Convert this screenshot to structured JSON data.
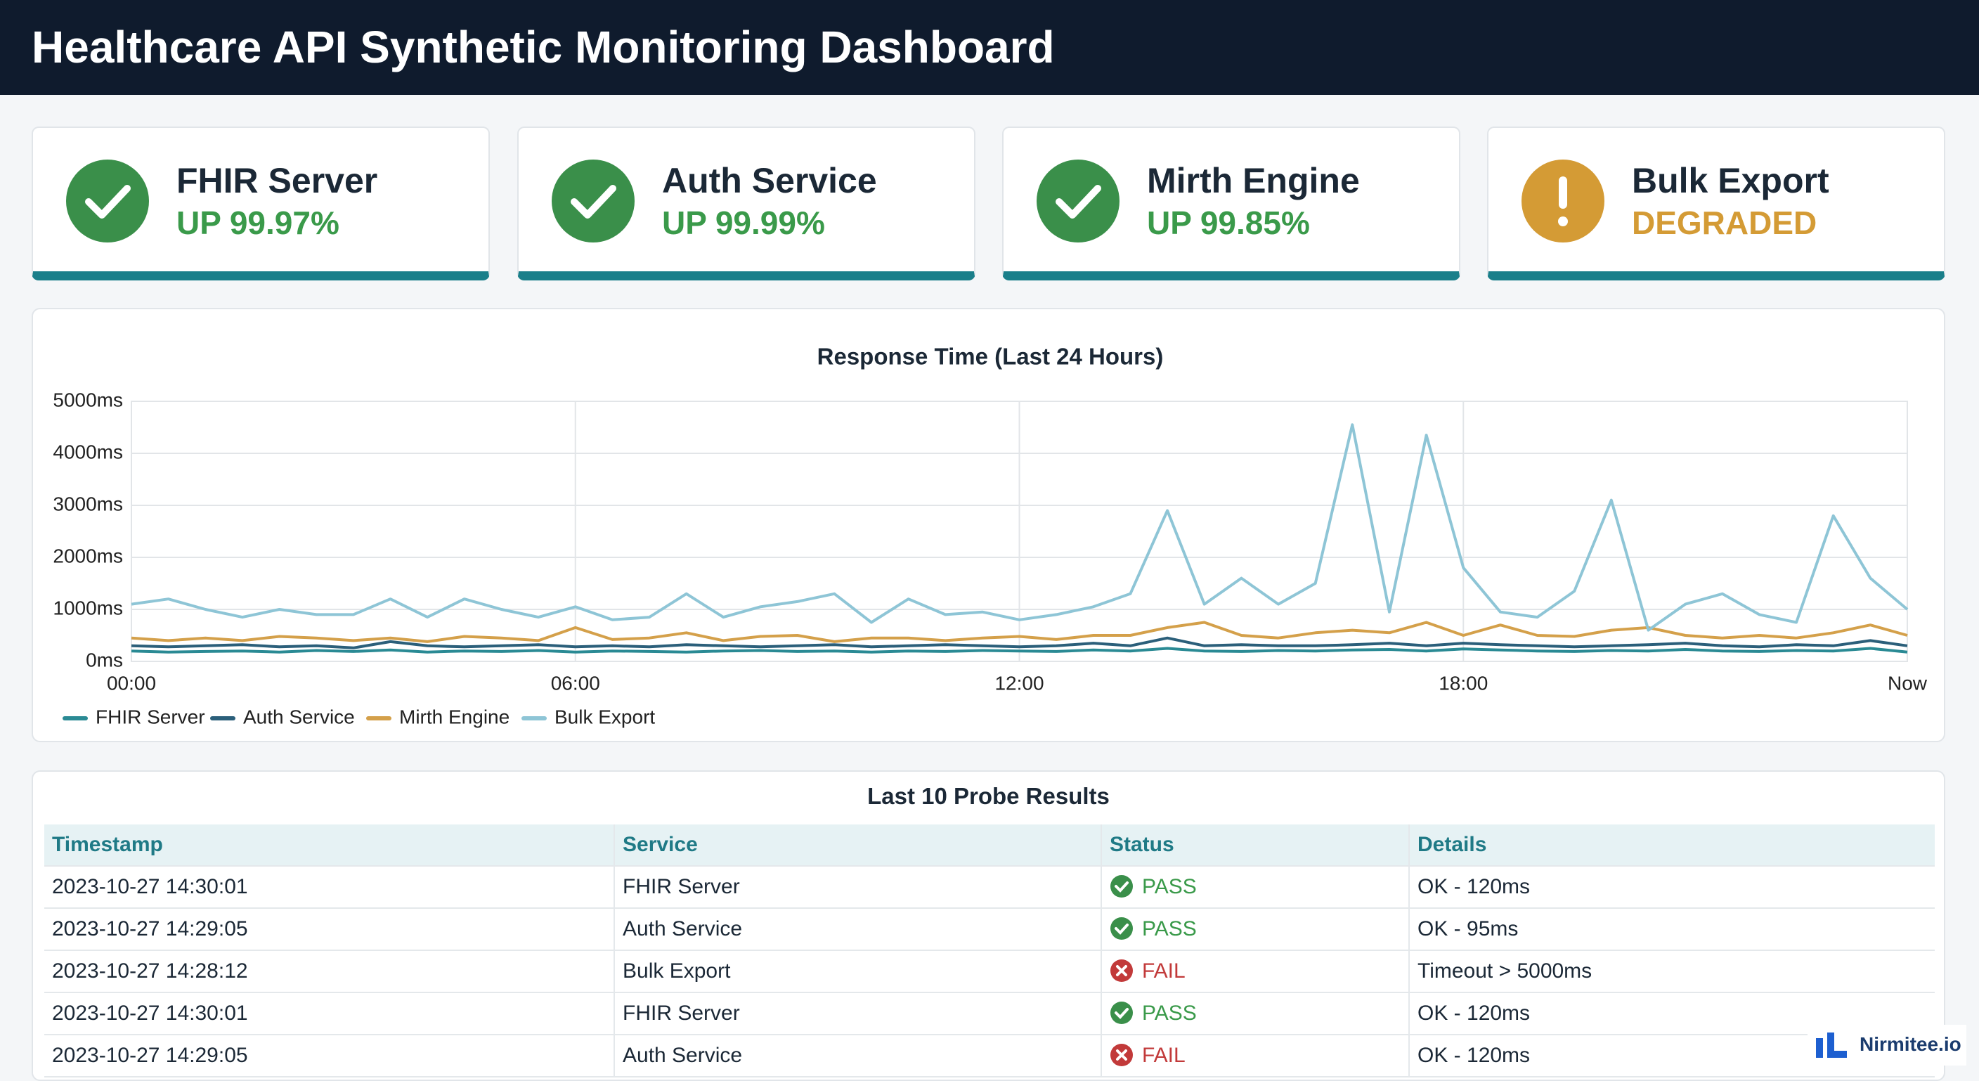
{
  "header": {
    "title": "Healthcare API Synthetic Monitoring Dashboard"
  },
  "services": [
    {
      "name": "FHIR Server",
      "status": "UP 99.97%"
    },
    {
      "name": "Auth Service",
      "status": "UP 99.99%"
    },
    {
      "name": "Mirth Engine",
      "status": "UP 99.85%"
    },
    {
      "name": "Bulk Export",
      "status": "DEGRADED"
    }
  ],
  "chart_data": {
    "type": "line",
    "title": "Response Time (Last 24 Hours)",
    "x": [
      0,
      0.5,
      1,
      1.5,
      2,
      2.5,
      3,
      3.5,
      4,
      4.5,
      5,
      5.5,
      6,
      6.5,
      7,
      7.5,
      8,
      8.5,
      9,
      9.5,
      10,
      10.5,
      11,
      11.5,
      12,
      12.5,
      13,
      13.5,
      14,
      14.5,
      15,
      15.5,
      16,
      16.5,
      17,
      17.5,
      18,
      18.5,
      19,
      19.5,
      20,
      20.5,
      21,
      21.5,
      22,
      22.5,
      23,
      23.5,
      24
    ],
    "xlim": [
      0,
      24
    ],
    "xticks": [
      {
        "value": 0,
        "label": "00:00"
      },
      {
        "value": 6,
        "label": "06:00"
      },
      {
        "value": 12,
        "label": "12:00"
      },
      {
        "value": 18,
        "label": "18:00"
      },
      {
        "value": 24,
        "label": "Now"
      }
    ],
    "ylim": [
      0,
      5000
    ],
    "yticks": [
      {
        "value": 0,
        "label": "0ms"
      },
      {
        "value": 1000,
        "label": "1000ms"
      },
      {
        "value": 2000,
        "label": "2000ms"
      },
      {
        "value": 3000,
        "label": "3000ms"
      },
      {
        "value": 4000,
        "label": "4000ms"
      },
      {
        "value": 5000,
        "label": "5000ms"
      }
    ],
    "grid": true,
    "series": [
      {
        "name": "FHIR Server",
        "color": "#2a8a94",
        "values": [
          200,
          180,
          190,
          200,
          180,
          210,
          190,
          220,
          180,
          200,
          190,
          210,
          180,
          200,
          190,
          180,
          200,
          210,
          190,
          200,
          180,
          200,
          190,
          210,
          200,
          190,
          220,
          200,
          250,
          200,
          190,
          210,
          200,
          220,
          230,
          200,
          240,
          220,
          200,
          190,
          210,
          200,
          230,
          200,
          190,
          210,
          200,
          250,
          180
        ]
      },
      {
        "name": "Auth Service",
        "color": "#2b5f7a",
        "values": [
          300,
          280,
          300,
          320,
          280,
          300,
          260,
          380,
          300,
          280,
          300,
          320,
          280,
          300,
          280,
          320,
          300,
          280,
          300,
          320,
          280,
          300,
          320,
          300,
          280,
          300,
          350,
          300,
          450,
          300,
          320,
          300,
          300,
          320,
          350,
          300,
          350,
          320,
          300,
          280,
          300,
          320,
          350,
          300,
          280,
          320,
          300,
          400,
          300
        ]
      },
      {
        "name": "Mirth Engine",
        "color": "#d4a04a",
        "values": [
          450,
          400,
          450,
          400,
          480,
          450,
          400,
          450,
          380,
          480,
          450,
          400,
          650,
          420,
          450,
          550,
          400,
          480,
          500,
          380,
          450,
          450,
          400,
          450,
          480,
          420,
          500,
          500,
          650,
          750,
          500,
          450,
          550,
          600,
          550,
          750,
          500,
          700,
          500,
          480,
          600,
          650,
          500,
          450,
          500,
          450,
          550,
          700,
          500
        ]
      },
      {
        "name": "Bulk Export",
        "color": "#8ec5d6",
        "values": [
          1100,
          1200,
          1000,
          850,
          1000,
          900,
          900,
          1200,
          850,
          1200,
          1000,
          850,
          1050,
          800,
          850,
          1300,
          850,
          1050,
          1150,
          1300,
          750,
          1200,
          900,
          950,
          800,
          900,
          1050,
          1300,
          2900,
          1100,
          1600,
          1100,
          1500,
          4550,
          950,
          4350,
          1800,
          950,
          850,
          1350,
          3100,
          600,
          1100,
          1300,
          900,
          750,
          2800,
          1600,
          1000
        ]
      }
    ]
  },
  "table": {
    "title": "Last 10 Probe Results",
    "columns": [
      "Timestamp",
      "Service",
      "Status",
      "Details"
    ],
    "rows": [
      [
        "2023-10-27 14:30:01",
        "FHIR Server",
        "PASS",
        "OK - 120ms"
      ],
      [
        "2023-10-27 14:29:05",
        "Auth Service",
        "PASS",
        "OK - 95ms"
      ],
      [
        "2023-10-27 14:28:12",
        "Bulk Export",
        "FAIL",
        "Timeout > 5000ms"
      ],
      [
        "2023-10-27 14:30:01",
        "FHIR Server",
        "PASS",
        "OK - 120ms"
      ],
      [
        "2023-10-27 14:29:05",
        "Auth Service",
        "FAIL",
        "OK - 120ms"
      ]
    ]
  },
  "logo": {
    "text": "Nirmitee.io"
  }
}
